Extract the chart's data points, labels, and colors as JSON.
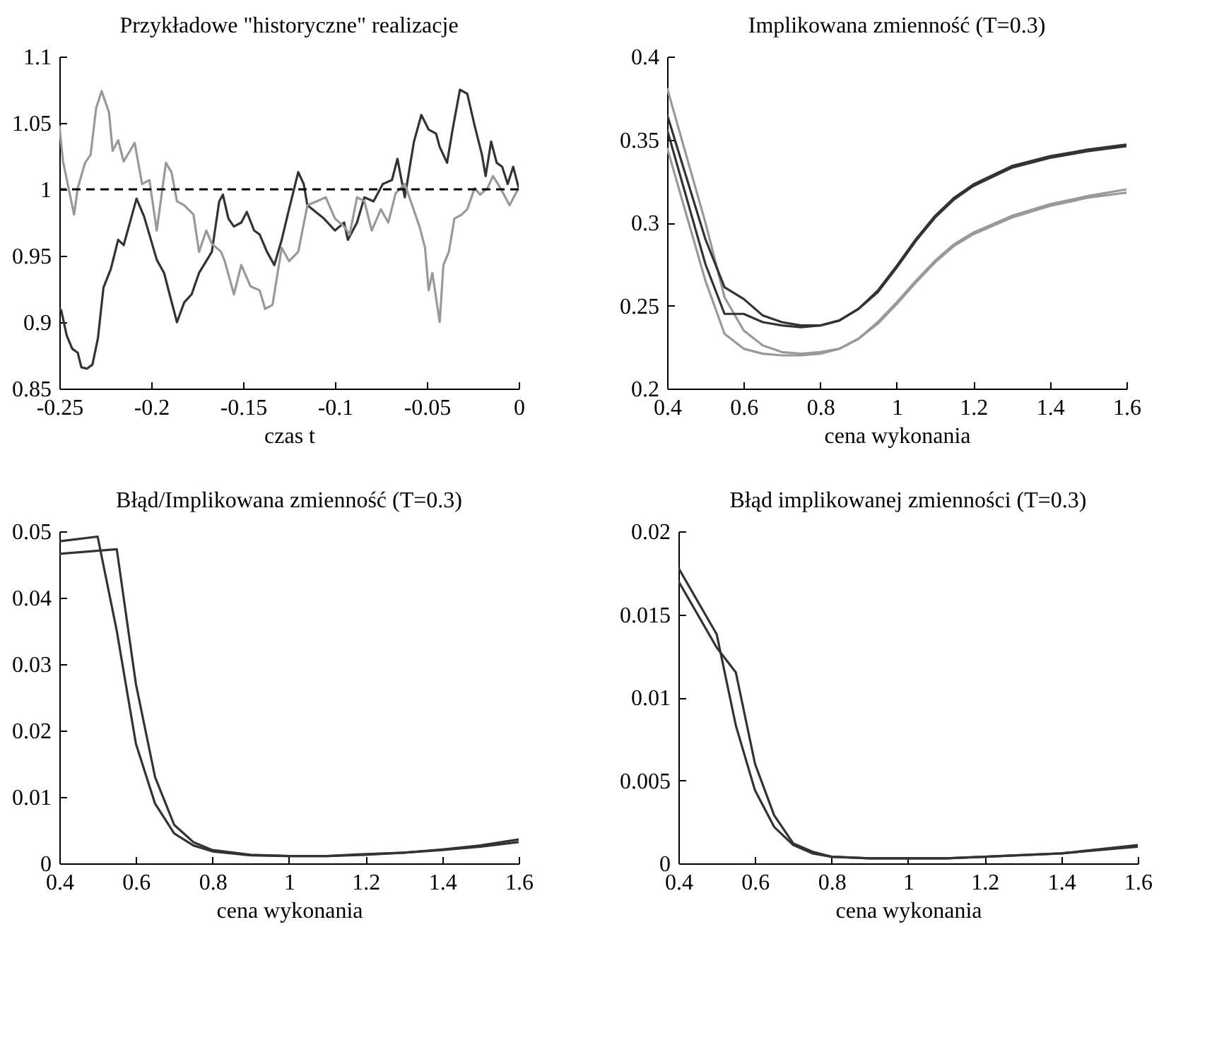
{
  "chart_data": [
    {
      "type": "line",
      "title": "Przykładowe \"historyczne\" realizacje",
      "xlabel": "czas t",
      "xlim": [
        -0.25,
        0
      ],
      "ylim": [
        0.85,
        1.1
      ],
      "xticks": [
        -0.25,
        -0.2,
        -0.15,
        -0.1,
        -0.05,
        0
      ],
      "yticks": [
        0.85,
        0.9,
        0.95,
        1,
        1.05,
        1.1
      ],
      "ref_lines": [
        {
          "axis": "y",
          "value": 1,
          "color": "#000000",
          "line_style": "dashed"
        }
      ],
      "series": [
        {
          "color": "#333333",
          "x": [
            -0.25,
            -0.249,
            -0.246,
            -0.243,
            -0.24,
            -0.238,
            -0.235,
            -0.232,
            -0.229,
            -0.226,
            -0.222,
            -0.218,
            -0.215,
            -0.211,
            -0.208,
            -0.204,
            -0.201,
            -0.197,
            -0.193,
            -0.19,
            -0.186,
            -0.182,
            -0.178,
            -0.174,
            -0.167,
            -0.163,
            -0.161,
            -0.158,
            -0.155,
            -0.151,
            -0.148,
            -0.144,
            -0.141,
            -0.137,
            -0.133,
            -0.129,
            -0.125,
            -0.12,
            -0.117,
            -0.115,
            -0.106,
            -0.1,
            -0.095,
            -0.093,
            -0.088,
            -0.084,
            -0.079,
            -0.074,
            -0.069,
            -0.066,
            -0.062,
            -0.057,
            -0.053,
            -0.049,
            -0.045,
            -0.043,
            -0.039,
            -0.036,
            -0.032,
            -0.028,
            -0.024,
            -0.02,
            -0.018,
            -0.015,
            -0.012,
            -0.009,
            -0.006,
            -0.003,
            0
          ],
          "values": [
            0.91,
            0.909,
            0.89,
            0.88,
            0.877,
            0.866,
            0.865,
            0.868,
            0.888,
            0.926,
            0.94,
            0.962,
            0.958,
            0.978,
            0.993,
            0.98,
            0.966,
            0.947,
            0.937,
            0.921,
            0.9,
            0.915,
            0.921,
            0.937,
            0.953,
            0.991,
            0.996,
            0.978,
            0.972,
            0.975,
            0.983,
            0.969,
            0.966,
            0.953,
            0.943,
            0.962,
            0.985,
            1.013,
            1.004,
            0.988,
            0.978,
            0.969,
            0.975,
            0.962,
            0.975,
            0.994,
            0.991,
            1.004,
            1.007,
            1.023,
            0.994,
            1.036,
            1.056,
            1.045,
            1.042,
            1.032,
            1.02,
            1.045,
            1.075,
            1.072,
            1.048,
            1.026,
            1.01,
            1.036,
            1.02,
            1.017,
            1.004,
            1.017,
            1.001
          ]
        },
        {
          "color": "#999999",
          "x": [
            -0.25,
            -0.248,
            -0.245,
            -0.242,
            -0.24,
            -0.236,
            -0.233,
            -0.23,
            -0.227,
            -0.223,
            -0.221,
            -0.218,
            -0.215,
            -0.209,
            -0.205,
            -0.201,
            -0.197,
            -0.192,
            -0.189,
            -0.186,
            -0.182,
            -0.177,
            -0.174,
            -0.17,
            -0.167,
            -0.162,
            -0.16,
            -0.155,
            -0.151,
            -0.146,
            -0.141,
            -0.138,
            -0.134,
            -0.129,
            -0.125,
            -0.12,
            -0.115,
            -0.11,
            -0.105,
            -0.1,
            -0.095,
            -0.092,
            -0.088,
            -0.084,
            -0.08,
            -0.075,
            -0.071,
            -0.067,
            -0.062,
            -0.058,
            -0.054,
            -0.051,
            -0.049,
            -0.047,
            -0.043,
            -0.041,
            -0.038,
            -0.035,
            -0.031,
            -0.028,
            -0.024,
            -0.021,
            -0.017,
            -0.014,
            -0.01,
            -0.005,
            0
          ],
          "values": [
            1.048,
            1.021,
            1.001,
            0.981,
            1.001,
            1.02,
            1.026,
            1.061,
            1.074,
            1.058,
            1.029,
            1.037,
            1.021,
            1.035,
            1.004,
            1.007,
            0.969,
            1.02,
            1.013,
            0.991,
            0.988,
            0.981,
            0.953,
            0.969,
            0.959,
            0.953,
            0.946,
            0.921,
            0.943,
            0.927,
            0.924,
            0.91,
            0.913,
            0.956,
            0.946,
            0.953,
            0.988,
            0.991,
            0.994,
            0.978,
            0.972,
            0.966,
            0.994,
            0.991,
            0.969,
            0.985,
            0.975,
            0.997,
            1.004,
            0.988,
            0.972,
            0.956,
            0.924,
            0.937,
            0.9,
            0.943,
            0.953,
            0.978,
            0.981,
            0.985,
            1.001,
            0.996,
            1.001,
            1.01,
            1.001,
            0.988,
            1.001
          ]
        }
      ]
    },
    {
      "type": "line",
      "title": "Implikowana zmienność (T=0.3)",
      "xlabel": "cena wykonania",
      "xlim": [
        0.4,
        1.6
      ],
      "ylim": [
        0.2,
        0.4
      ],
      "xticks": [
        0.4,
        0.6,
        0.8,
        1,
        1.2,
        1.4,
        1.6
      ],
      "yticks": [
        0.2,
        0.25,
        0.3,
        0.35,
        0.4
      ],
      "series": [
        {
          "color": "#999999",
          "x": [
            0.4,
            0.5,
            0.55,
            0.6,
            0.65,
            0.7,
            0.75,
            0.8,
            0.85,
            0.9,
            0.95,
            1,
            1.05,
            1.1,
            1.15,
            1.2,
            1.3,
            1.4,
            1.5,
            1.6
          ],
          "values": [
            0.381,
            0.3,
            0.255,
            0.235,
            0.226,
            0.222,
            0.221,
            0.222,
            0.224,
            0.23,
            0.24,
            0.252,
            0.265,
            0.277,
            0.287,
            0.294,
            0.304,
            0.311,
            0.316,
            0.32
          ]
        },
        {
          "color": "#999999",
          "x": [
            0.4,
            0.5,
            0.55,
            0.6,
            0.65,
            0.7,
            0.75,
            0.8,
            0.85,
            0.9,
            0.95,
            1,
            1.05,
            1.1,
            1.15,
            1.2,
            1.3,
            1.4,
            1.5,
            1.6
          ],
          "values": [
            0.345,
            0.265,
            0.233,
            0.224,
            0.221,
            0.22,
            0.22,
            0.221,
            0.224,
            0.23,
            0.239,
            0.251,
            0.264,
            0.276,
            0.286,
            0.293,
            0.303,
            0.31,
            0.315,
            0.318
          ]
        },
        {
          "color": "#333333",
          "x": [
            0.4,
            0.5,
            0.55,
            0.6,
            0.65,
            0.7,
            0.75,
            0.8,
            0.85,
            0.9,
            0.95,
            1,
            1.05,
            1.1,
            1.15,
            1.2,
            1.3,
            1.4,
            1.5,
            1.6
          ],
          "values": [
            0.365,
            0.29,
            0.261,
            0.254,
            0.244,
            0.24,
            0.238,
            0.238,
            0.241,
            0.248,
            0.259,
            0.274,
            0.29,
            0.304,
            0.315,
            0.323,
            0.334,
            0.34,
            0.344,
            0.347
          ]
        },
        {
          "color": "#333333",
          "x": [
            0.4,
            0.5,
            0.55,
            0.6,
            0.65,
            0.7,
            0.75,
            0.8,
            0.85,
            0.9,
            0.95,
            1,
            1.05,
            1.1,
            1.15,
            1.2,
            1.3,
            1.4,
            1.5,
            1.6
          ],
          "values": [
            0.356,
            0.275,
            0.245,
            0.245,
            0.24,
            0.238,
            0.237,
            0.238,
            0.241,
            0.248,
            0.258,
            0.273,
            0.289,
            0.303,
            0.314,
            0.322,
            0.333,
            0.339,
            0.343,
            0.346
          ]
        }
      ]
    },
    {
      "type": "line",
      "title": "Błąd/Implikowana zmienność (T=0.3)",
      "xlabel": "cena wykonania",
      "xlim": [
        0.4,
        1.6
      ],
      "ylim": [
        0,
        0.05
      ],
      "xticks": [
        0.4,
        0.6,
        0.8,
        1,
        1.2,
        1.4,
        1.6
      ],
      "yticks": [
        0,
        0.01,
        0.02,
        0.03,
        0.04,
        0.05
      ],
      "series": [
        {
          "color": "#333333",
          "x": [
            0.4,
            0.5,
            0.55,
            0.6,
            0.65,
            0.7,
            0.75,
            0.8,
            0.9,
            1,
            1.1,
            1.2,
            1.3,
            1.4,
            1.5,
            1.6
          ],
          "values": [
            0.0485,
            0.0492,
            0.035,
            0.018,
            0.009,
            0.0045,
            0.0027,
            0.0018,
            0.0012,
            0.0011,
            0.0011,
            0.0014,
            0.0016,
            0.0021,
            0.0027,
            0.0036
          ]
        },
        {
          "color": "#333333",
          "x": [
            0.4,
            0.55,
            0.6,
            0.65,
            0.7,
            0.75,
            0.8,
            0.9,
            1,
            1.1,
            1.2,
            1.3,
            1.4,
            1.5,
            1.6
          ],
          "values": [
            0.0466,
            0.0473,
            0.027,
            0.013,
            0.0058,
            0.0032,
            0.002,
            0.0013,
            0.0011,
            0.0011,
            0.0013,
            0.0016,
            0.002,
            0.0025,
            0.0032
          ]
        }
      ]
    },
    {
      "type": "line",
      "title": "Błąd implikowanej zmienności (T=0.3)",
      "xlabel": "cena wykonania",
      "xlim": [
        0.4,
        1.6
      ],
      "ylim": [
        0,
        0.02
      ],
      "xticks": [
        0.4,
        0.6,
        0.8,
        1,
        1.2,
        1.4,
        1.6
      ],
      "yticks": [
        0,
        0.005,
        0.01,
        0.015,
        0.02
      ],
      "series": [
        {
          "color": "#333333",
          "x": [
            0.4,
            0.5,
            0.55,
            0.6,
            0.65,
            0.7,
            0.75,
            0.8,
            0.9,
            1,
            1.1,
            1.2,
            1.4,
            1.6
          ],
          "values": [
            0.0178,
            0.0138,
            0.0083,
            0.0044,
            0.0022,
            0.0011,
            0.0006,
            0.0004,
            0.0003,
            0.0003,
            0.0003,
            0.0004,
            0.0006,
            0.001
          ]
        },
        {
          "color": "#333333",
          "x": [
            0.4,
            0.5,
            0.55,
            0.6,
            0.65,
            0.7,
            0.75,
            0.8,
            0.9,
            1,
            1.1,
            1.2,
            1.4,
            1.6
          ],
          "values": [
            0.017,
            0.013,
            0.0115,
            0.006,
            0.0029,
            0.0012,
            0.0007,
            0.0004,
            0.0003,
            0.0003,
            0.0003,
            0.0004,
            0.0006,
            0.0011
          ]
        }
      ]
    }
  ]
}
